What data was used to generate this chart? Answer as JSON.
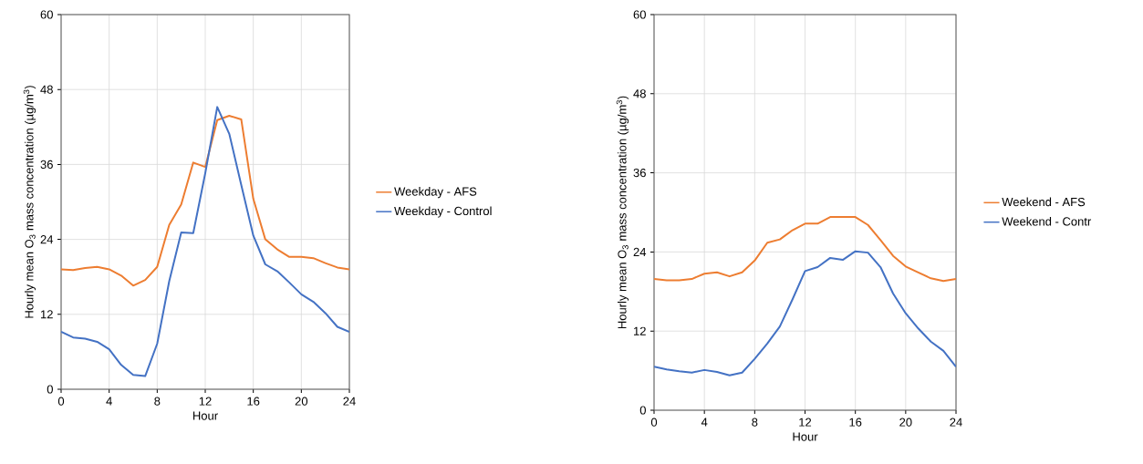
{
  "chart_data": [
    {
      "type": "line",
      "xlabel": "Hour",
      "ylabel": "Hourly mean O$_{3}$ mass concentration (µg/m$^{3}$)",
      "x": [
        0,
        1,
        2,
        3,
        4,
        5,
        6,
        7,
        8,
        9,
        10,
        11,
        12,
        13,
        14,
        15,
        16,
        17,
        18,
        19,
        20,
        21,
        22,
        23,
        24
      ],
      "xlim": [
        0,
        24
      ],
      "xticks": [
        0,
        4,
        8,
        12,
        16,
        20,
        24
      ],
      "ylim": [
        0,
        60
      ],
      "yticks": [
        0,
        12,
        24,
        36,
        48,
        60
      ],
      "grid": true,
      "legend": "right",
      "line_style": "solid",
      "marker": "none",
      "series": [
        {
          "name": "Weekday - AFS",
          "color": "#ed7d31",
          "values": [
            19.2,
            19.1,
            19.4,
            19.6,
            19.2,
            18.2,
            16.6,
            17.5,
            19.6,
            26.3,
            29.6,
            36.3,
            35.6,
            43.1,
            43.8,
            43.2,
            30.5,
            24.0,
            22.4,
            21.2,
            21.2,
            21.0,
            20.2,
            19.5,
            19.2
          ]
        },
        {
          "name": "Weekday - Control",
          "color": "#4472c4",
          "values": [
            9.2,
            8.3,
            8.1,
            7.6,
            6.4,
            3.9,
            2.3,
            2.1,
            7.3,
            17.3,
            25.1,
            25.0,
            34.6,
            45.2,
            40.9,
            32.7,
            24.6,
            20.0,
            18.9,
            17.1,
            15.2,
            14.0,
            12.2,
            10.0,
            9.2
          ]
        }
      ]
    },
    {
      "type": "line",
      "xlabel": "Hour",
      "ylabel": "Hourly mean O$_{3}$ mass concentration (µg/m$^{3}$)",
      "x": [
        0,
        1,
        2,
        3,
        4,
        5,
        6,
        7,
        8,
        9,
        10,
        11,
        12,
        13,
        14,
        15,
        16,
        17,
        18,
        19,
        20,
        21,
        22,
        23,
        24
      ],
      "xlim": [
        0,
        24
      ],
      "xticks": [
        0,
        4,
        8,
        12,
        16,
        20,
        24
      ],
      "ylim": [
        0,
        60
      ],
      "yticks": [
        0,
        12,
        24,
        36,
        48,
        60
      ],
      "grid": true,
      "legend": "right",
      "line_style": "solid",
      "marker": "none",
      "series": [
        {
          "name": "Weekend - AFS",
          "color": "#ed7d31",
          "values": [
            19.9,
            19.7,
            19.7,
            19.9,
            20.7,
            20.9,
            20.3,
            20.9,
            22.7,
            25.4,
            25.9,
            27.3,
            28.3,
            28.3,
            29.3,
            29.3,
            29.3,
            28.1,
            25.8,
            23.4,
            21.8,
            20.9,
            20.0,
            19.6,
            19.9
          ]
        },
        {
          "name": "Weekend - Contr",
          "color": "#4472c4",
          "values": [
            6.6,
            6.2,
            5.9,
            5.7,
            6.1,
            5.8,
            5.3,
            5.7,
            7.8,
            10.1,
            12.7,
            16.8,
            21.1,
            21.7,
            23.1,
            22.8,
            24.1,
            23.9,
            21.7,
            17.7,
            14.7,
            12.4,
            10.4,
            9.0,
            6.6
          ]
        }
      ]
    }
  ]
}
